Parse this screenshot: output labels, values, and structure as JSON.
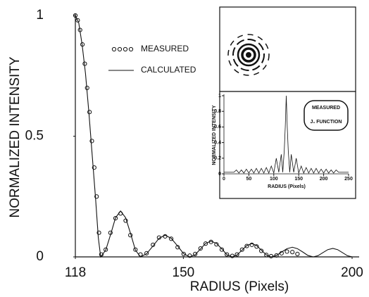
{
  "chart_data": [
    {
      "type": "line",
      "xlabel": "RADIUS (Pixels)",
      "ylabel": "NORMALIZED INTENSITY",
      "xlim": [
        118,
        200
      ],
      "ylim": [
        0,
        1
      ],
      "xticks": [
        118,
        150,
        200
      ],
      "yticks": [
        0,
        0.5,
        1
      ],
      "series": [
        {
          "name": "MEASURED",
          "color": "#111111",
          "marker": "circle",
          "x": [
            118,
            118.7,
            119.4,
            120.1,
            120.8,
            121.5,
            122.2,
            122.9,
            123.6,
            124.3,
            125,
            125.7,
            127,
            128.4,
            129.9,
            131.4,
            132.9,
            134.3,
            135.8,
            137.3,
            139.1,
            141,
            142.8,
            144.6,
            146.4,
            148.3,
            150.1,
            151.9,
            153.5,
            155.1,
            156.6,
            158.2,
            159.8,
            161.4,
            162.9,
            164.5,
            165.9,
            167.4,
            168.8,
            170.3,
            171.7,
            173.1,
            174.6,
            176,
            177.6,
            179.1,
            180.7,
            182.3,
            183.8
          ],
          "values": [
            1,
            0.98,
            0.94,
            0.88,
            0.8,
            0.7,
            0.6,
            0.48,
            0.37,
            0.25,
            0.1,
            0.01,
            0.03,
            0.1,
            0.16,
            0.18,
            0.15,
            0.09,
            0.03,
            0.01,
            0.015,
            0.05,
            0.08,
            0.085,
            0.075,
            0.04,
            0.012,
            0.005,
            0.012,
            0.035,
            0.055,
            0.062,
            0.052,
            0.03,
            0.01,
            0.004,
            0.01,
            0.03,
            0.045,
            0.05,
            0.043,
            0.025,
            0.008,
            0.003,
            0.006,
            0.015,
            0.022,
            0.02,
            0.012
          ]
        },
        {
          "name": "CALCULATED",
          "color": "#111111",
          "marker": "none",
          "x": [
            118,
            119,
            120,
            121,
            122,
            123,
            124,
            124.8,
            125.5,
            127,
            128.5,
            129.9,
            131.4,
            132.9,
            134.4,
            135.8,
            137.3,
            139.1,
            141,
            142.8,
            144.6,
            146.4,
            148.3,
            150.1,
            151.9,
            153.5,
            155.1,
            156.6,
            158.2,
            159.8,
            161.4,
            162.9,
            164.5,
            165.9,
            167.4,
            168.8,
            170.3,
            171.7,
            173.1,
            174.6,
            176,
            177.6,
            179.1,
            180.7,
            182.3,
            183.8,
            185.4,
            186.9,
            188.5,
            189.9,
            191.4,
            192.8,
            194.3,
            195.7,
            197.1,
            198.6,
            200
          ],
          "values": [
            1,
            0.97,
            0.88,
            0.76,
            0.6,
            0.42,
            0.24,
            0.08,
            0,
            0.028,
            0.095,
            0.162,
            0.19,
            0.162,
            0.095,
            0.028,
            0,
            0.013,
            0.045,
            0.077,
            0.09,
            0.077,
            0.045,
            0.013,
            0,
            0.009,
            0.033,
            0.056,
            0.065,
            0.056,
            0.033,
            0.009,
            0,
            0.008,
            0.028,
            0.047,
            0.055,
            0.047,
            0.028,
            0.008,
            0,
            0.006,
            0.02,
            0.034,
            0.04,
            0.034,
            0.02,
            0.006,
            0,
            0.005,
            0.018,
            0.03,
            0.035,
            0.03,
            0.018,
            0.005,
            0
          ]
        }
      ]
    },
    {
      "type": "line",
      "xlabel": "RADIUS (Pixels)",
      "ylabel": "NORMALIZED INTENSITY",
      "annotations": [
        "MEASURED",
        "J₁ FUNCTION"
      ],
      "xlim": [
        0,
        250
      ],
      "ylim": [
        0,
        1
      ],
      "xticks": [
        0,
        50,
        100,
        150,
        200,
        250
      ],
      "yticks": [
        0,
        0.2,
        0.4,
        0.6,
        0.8,
        1
      ],
      "series": [
        {
          "color": "#111111",
          "marker": "none",
          "x": [
            0,
            20,
            25,
            30,
            35,
            40,
            45,
            50,
            55,
            60,
            65,
            70,
            75,
            80,
            85,
            90,
            95,
            100,
            105,
            110,
            115,
            118,
            121,
            123,
            125,
            127,
            129,
            132,
            135,
            140,
            145,
            150,
            155,
            160,
            165,
            170,
            175,
            180,
            185,
            190,
            195,
            200,
            205,
            210,
            215,
            220,
            225,
            230,
            250
          ],
          "values": [
            0.02,
            0.02,
            0.05,
            0.01,
            0.05,
            0.01,
            0.06,
            0.01,
            0.06,
            0.01,
            0.07,
            0.01,
            0.07,
            0.01,
            0.08,
            0.01,
            0.1,
            0.01,
            0.2,
            0.02,
            0.25,
            0.02,
            0.3,
            0.6,
            1,
            0.6,
            0.3,
            0.02,
            0.25,
            0.02,
            0.2,
            0.01,
            0.1,
            0.01,
            0.08,
            0.01,
            0.07,
            0.01,
            0.07,
            0.01,
            0.06,
            0.01,
            0.06,
            0.01,
            0.05,
            0.01,
            0.05,
            0.02,
            0.02
          ]
        }
      ]
    }
  ]
}
